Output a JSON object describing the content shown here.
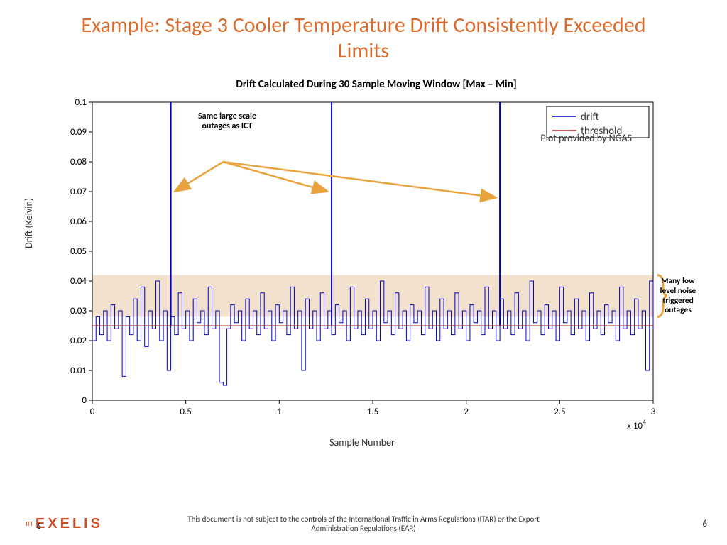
{
  "title": "Example: Stage 3 Cooler Temperature Drift Consistently Exceeded Limits",
  "chart": {
    "type": "line",
    "title": "Drift Calculated During 30 Sample Moving Window [Max – Min]",
    "x_label": "Sample Number",
    "y_label": "Drift (Kelvin)",
    "x_multiplier_label": "x 10",
    "x_multiplier_exp": "4",
    "xlim": [
      0,
      3
    ],
    "ylim": [
      0,
      0.1
    ],
    "xticks": [
      0,
      0.5,
      1,
      1.5,
      2,
      2.5,
      3
    ],
    "yticks": [
      0,
      0.01,
      0.02,
      0.03,
      0.04,
      0.05,
      0.06,
      0.07,
      0.08,
      0.09,
      0.1
    ],
    "background_color": "#ffffff",
    "axis_color": "#000000",
    "tick_fontsize": 13,
    "threshold": {
      "value": 0.025,
      "color": "#b22222",
      "width": 1
    },
    "highlight_band": {
      "y_min": 0.028,
      "y_max": 0.042,
      "color": "#f0dcc4",
      "opacity": 0.85
    },
    "drift_color": "#0000cc",
    "drift_width": 1,
    "legend": {
      "items": [
        {
          "label": "drift",
          "color": "#0000cc"
        },
        {
          "label": "threshold",
          "color": "#b22222"
        }
      ],
      "border_color": "#000000",
      "font_color": "#333333",
      "fontsize": 15
    },
    "spikes_x": [
      0.42,
      1.28,
      2.18
    ],
    "spike_height": 0.2,
    "baseline_segments": [
      [
        0.0,
        0.02
      ],
      [
        0.02,
        0.028
      ],
      [
        0.04,
        0.022
      ],
      [
        0.06,
        0.03
      ],
      [
        0.08,
        0.02
      ],
      [
        0.1,
        0.032
      ],
      [
        0.12,
        0.024
      ],
      [
        0.14,
        0.03
      ],
      [
        0.16,
        0.008
      ],
      [
        0.18,
        0.028
      ],
      [
        0.2,
        0.022
      ],
      [
        0.22,
        0.034
      ],
      [
        0.24,
        0.02
      ],
      [
        0.26,
        0.038
      ],
      [
        0.28,
        0.018
      ],
      [
        0.3,
        0.03
      ],
      [
        0.32,
        0.024
      ],
      [
        0.34,
        0.04
      ],
      [
        0.36,
        0.02
      ],
      [
        0.38,
        0.03
      ],
      [
        0.4,
        0.01
      ],
      [
        0.42,
        0.028
      ],
      [
        0.44,
        0.022
      ],
      [
        0.46,
        0.036
      ],
      [
        0.48,
        0.024
      ],
      [
        0.5,
        0.03
      ],
      [
        0.52,
        0.02
      ],
      [
        0.54,
        0.034
      ],
      [
        0.56,
        0.026
      ],
      [
        0.58,
        0.03
      ],
      [
        0.6,
        0.022
      ],
      [
        0.62,
        0.038
      ],
      [
        0.64,
        0.024
      ],
      [
        0.66,
        0.03
      ],
      [
        0.68,
        0.006
      ],
      [
        0.7,
        0.005
      ],
      [
        0.72,
        0.024
      ],
      [
        0.74,
        0.032
      ],
      [
        0.76,
        0.026
      ],
      [
        0.78,
        0.03
      ],
      [
        0.8,
        0.02
      ],
      [
        0.82,
        0.034
      ],
      [
        0.84,
        0.024
      ],
      [
        0.86,
        0.03
      ],
      [
        0.88,
        0.022
      ],
      [
        0.9,
        0.036
      ],
      [
        0.92,
        0.024
      ],
      [
        0.94,
        0.03
      ],
      [
        0.96,
        0.02
      ],
      [
        0.98,
        0.032
      ],
      [
        1.0,
        0.026
      ],
      [
        1.02,
        0.03
      ],
      [
        1.04,
        0.022
      ],
      [
        1.06,
        0.038
      ],
      [
        1.08,
        0.024
      ],
      [
        1.1,
        0.03
      ],
      [
        1.12,
        0.01
      ],
      [
        1.14,
        0.034
      ],
      [
        1.16,
        0.024
      ],
      [
        1.18,
        0.03
      ],
      [
        1.2,
        0.02
      ],
      [
        1.22,
        0.036
      ],
      [
        1.24,
        0.024
      ],
      [
        1.26,
        0.03
      ],
      [
        1.28,
        0.022
      ],
      [
        1.3,
        0.032
      ],
      [
        1.32,
        0.026
      ],
      [
        1.34,
        0.03
      ],
      [
        1.36,
        0.02
      ],
      [
        1.38,
        0.038
      ],
      [
        1.4,
        0.024
      ],
      [
        1.42,
        0.03
      ],
      [
        1.44,
        0.022
      ],
      [
        1.46,
        0.034
      ],
      [
        1.48,
        0.024
      ],
      [
        1.5,
        0.03
      ],
      [
        1.52,
        0.02
      ],
      [
        1.54,
        0.04
      ],
      [
        1.56,
        0.026
      ],
      [
        1.58,
        0.03
      ],
      [
        1.6,
        0.022
      ],
      [
        1.62,
        0.036
      ],
      [
        1.64,
        0.024
      ],
      [
        1.66,
        0.03
      ],
      [
        1.68,
        0.02
      ],
      [
        1.7,
        0.032
      ],
      [
        1.72,
        0.026
      ],
      [
        1.74,
        0.03
      ],
      [
        1.76,
        0.022
      ],
      [
        1.78,
        0.038
      ],
      [
        1.8,
        0.024
      ],
      [
        1.82,
        0.03
      ],
      [
        1.84,
        0.02
      ],
      [
        1.86,
        0.034
      ],
      [
        1.88,
        0.024
      ],
      [
        1.9,
        0.03
      ],
      [
        1.92,
        0.022
      ],
      [
        1.94,
        0.036
      ],
      [
        1.96,
        0.024
      ],
      [
        1.98,
        0.03
      ],
      [
        2.0,
        0.02
      ],
      [
        2.02,
        0.032
      ],
      [
        2.04,
        0.026
      ],
      [
        2.06,
        0.03
      ],
      [
        2.08,
        0.022
      ],
      [
        2.1,
        0.038
      ],
      [
        2.12,
        0.024
      ],
      [
        2.14,
        0.03
      ],
      [
        2.16,
        0.02
      ],
      [
        2.18,
        0.034
      ],
      [
        2.2,
        0.024
      ],
      [
        2.22,
        0.03
      ],
      [
        2.24,
        0.022
      ],
      [
        2.26,
        0.036
      ],
      [
        2.28,
        0.024
      ],
      [
        2.3,
        0.03
      ],
      [
        2.32,
        0.02
      ],
      [
        2.34,
        0.04
      ],
      [
        2.36,
        0.026
      ],
      [
        2.38,
        0.03
      ],
      [
        2.4,
        0.022
      ],
      [
        2.42,
        0.032
      ],
      [
        2.44,
        0.024
      ],
      [
        2.46,
        0.03
      ],
      [
        2.48,
        0.02
      ],
      [
        2.5,
        0.038
      ],
      [
        2.52,
        0.026
      ],
      [
        2.54,
        0.03
      ],
      [
        2.56,
        0.022
      ],
      [
        2.58,
        0.034
      ],
      [
        2.6,
        0.024
      ],
      [
        2.62,
        0.03
      ],
      [
        2.64,
        0.02
      ],
      [
        2.66,
        0.036
      ],
      [
        2.68,
        0.024
      ],
      [
        2.7,
        0.03
      ],
      [
        2.72,
        0.022
      ],
      [
        2.74,
        0.032
      ],
      [
        2.76,
        0.026
      ],
      [
        2.78,
        0.03
      ],
      [
        2.8,
        0.02
      ],
      [
        2.82,
        0.038
      ],
      [
        2.84,
        0.024
      ],
      [
        2.86,
        0.03
      ],
      [
        2.88,
        0.022
      ],
      [
        2.9,
        0.034
      ],
      [
        2.92,
        0.024
      ],
      [
        2.94,
        0.03
      ],
      [
        2.96,
        0.01
      ],
      [
        2.98,
        0.04
      ],
      [
        3.0,
        0.024
      ]
    ]
  },
  "annotations": {
    "outages_label": "Same large scale\noutages as ICT",
    "plot_credit": "Plot provided by NGAS",
    "side_note": "Many low level noise triggered outages",
    "arrow_color": "#e8a33d",
    "arrow_origin": [
      0.7,
      0.08
    ],
    "arrow_targets": [
      [
        0.44,
        0.07
      ],
      [
        1.26,
        0.07
      ],
      [
        2.16,
        0.068
      ]
    ],
    "brace_color": "#e8a33d"
  },
  "footer": {
    "disclaimer": "This document is not subject to the controls of the International Traffic in Arms Regulations (ITAR) or the Export Administration Regulations (EAR)",
    "page": "6",
    "logo_prefix": "ITT",
    "logo_main": "EXELIS"
  },
  "colors": {
    "title_color": "#d96c2c",
    "text_color": "#333333"
  }
}
